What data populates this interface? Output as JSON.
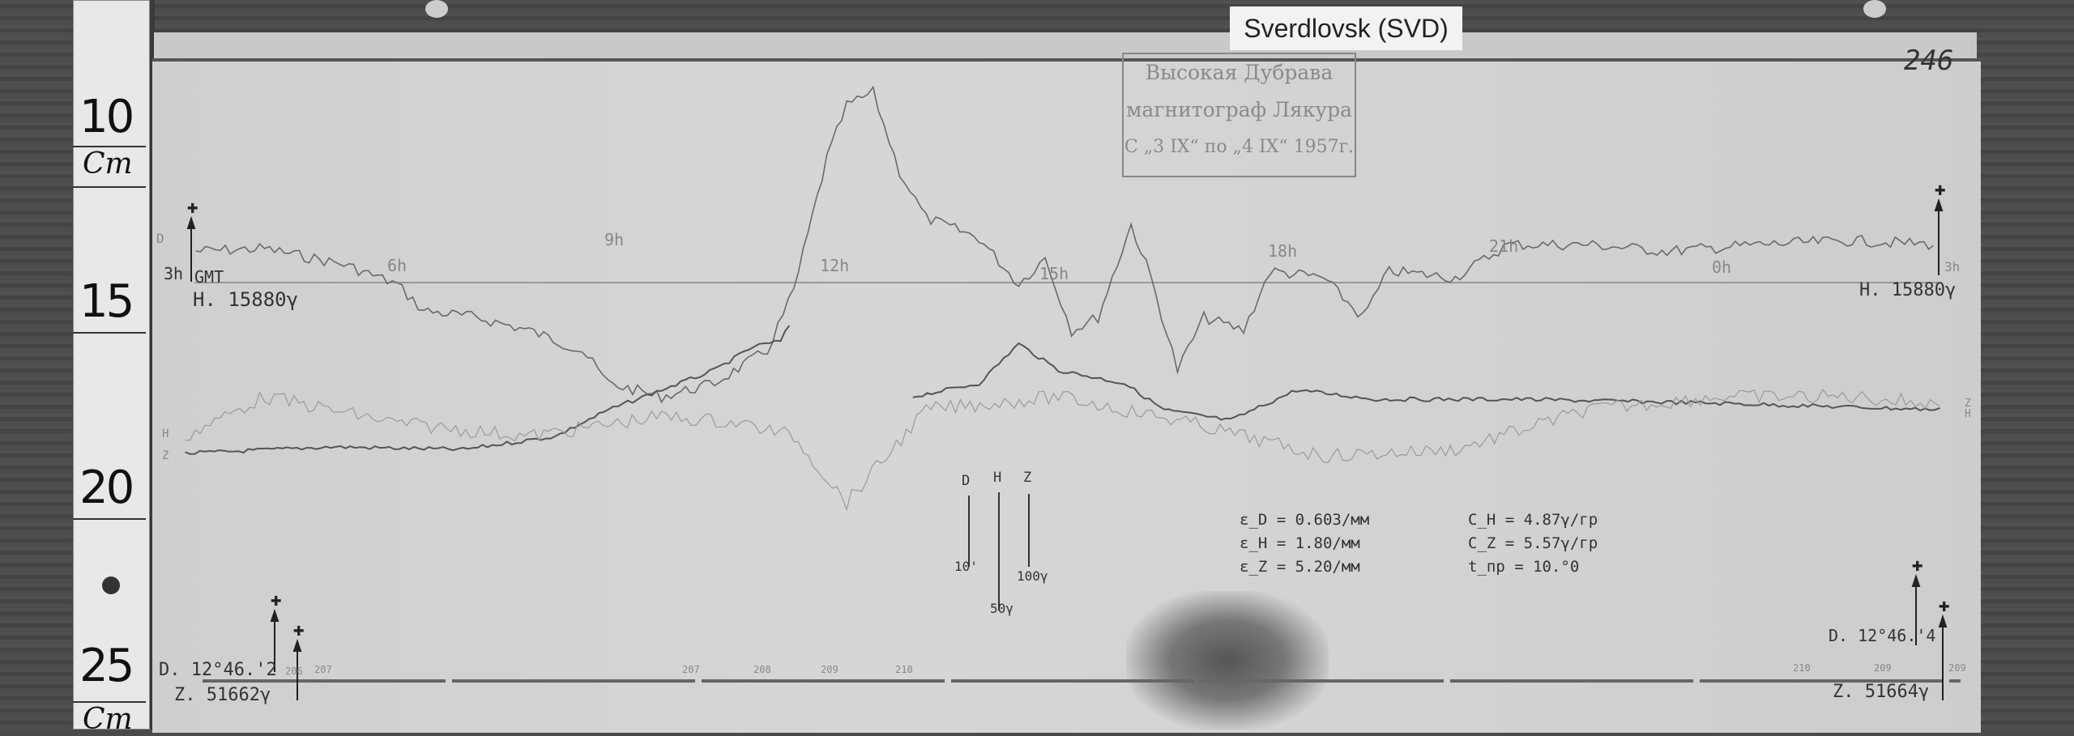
{
  "tag_label": "Sverdlovsk (SVD)",
  "stamp": {
    "line1": "Высокая Дубрава",
    "line2": "магнитограф Лякура",
    "line3": "С „3 IX“ по „4 IX“ 1957г."
  },
  "sheet_number": "246",
  "ruler": {
    "marks": [
      "10",
      "15",
      "20",
      "25"
    ],
    "unit": "Cm"
  },
  "hour_marks": [
    "3h",
    "6h",
    "9h",
    "12h",
    "15h",
    "18h",
    "21h",
    "0h",
    "3h"
  ],
  "gmt_label": "GMT",
  "trace_labels": {
    "d": "D",
    "h": "H",
    "z": "Z",
    "right_zh": "Z H"
  },
  "baselines": {
    "h_left": "H. 15880γ",
    "h_right": "H. 15880γ",
    "d_left": "D. 12°46.'2",
    "z_left": "Z. 51662γ",
    "d_right": "D. 12°46.'4",
    "z_right": "Z. 51664γ"
  },
  "bottom_ticks": [
    "206",
    "207",
    "207",
    "208",
    "209",
    "210",
    "210",
    "209",
    "209"
  ],
  "scale_bars": [
    {
      "name": "D",
      "value": "10'"
    },
    {
      "name": "H",
      "value": "50γ"
    },
    {
      "name": "Z",
      "value": "100γ"
    }
  ],
  "sensitivities": [
    "ε_D = 0.603/мм",
    "ε_H = 1.80/мм",
    "ε_Z = 5.20/мм"
  ],
  "constants": [
    "C_H = 4.87γ/гр",
    "C_Z = 5.57γ/гр",
    "t_пр = 10.°0"
  ]
}
